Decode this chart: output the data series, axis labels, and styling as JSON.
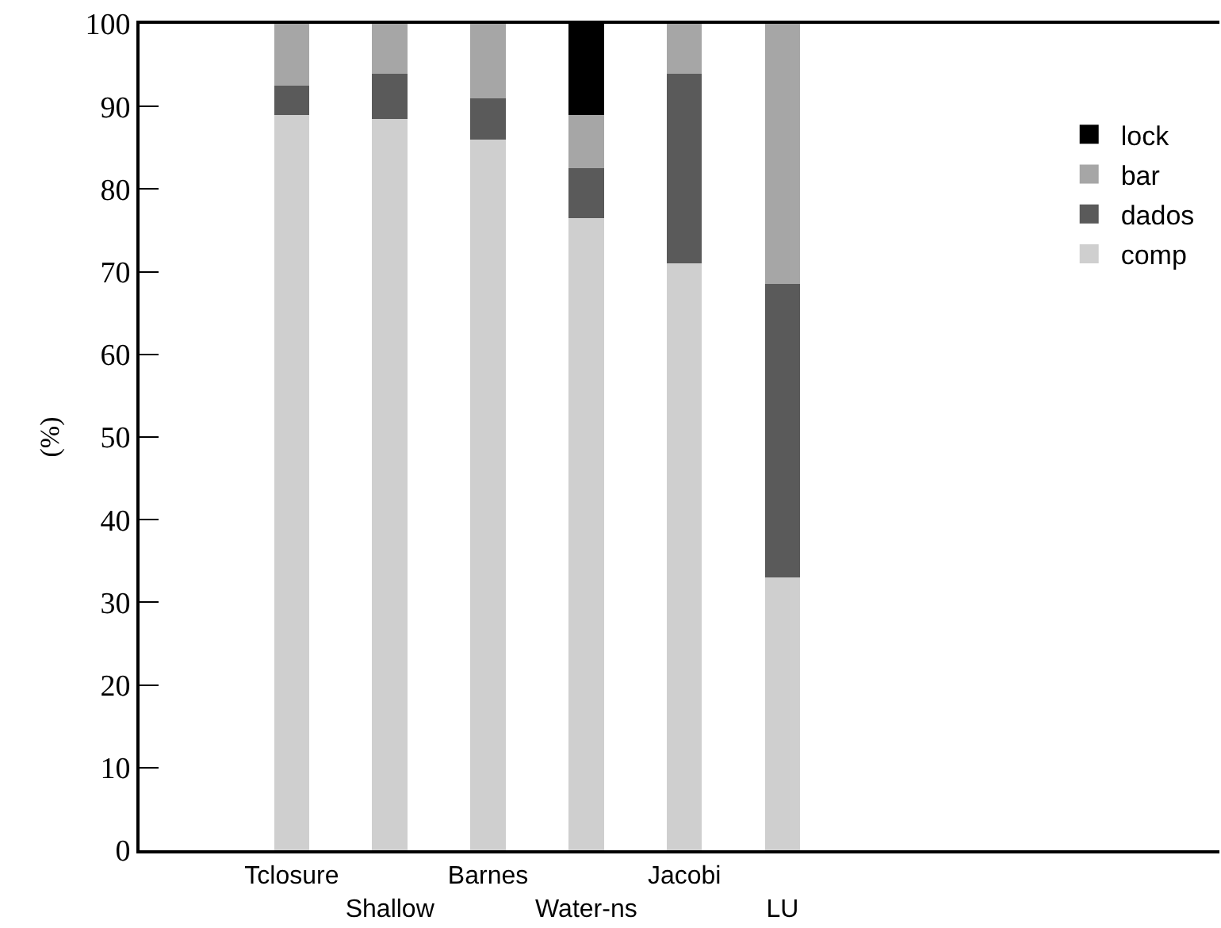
{
  "chart_data": {
    "type": "bar",
    "stacked": true,
    "ylabel": "(%)",
    "categories": [
      "Tclosure",
      "Shallow",
      "Barnes",
      "Water-ns",
      "Jacobi",
      "LU"
    ],
    "series": [
      {
        "name": "comp",
        "color": "#cfcfcf",
        "values": [
          89,
          88.5,
          86,
          76.5,
          71,
          33
        ]
      },
      {
        "name": "dados",
        "color": "#5a5a5a",
        "values": [
          3.5,
          5.5,
          5,
          6,
          23,
          35.5
        ]
      },
      {
        "name": "bar",
        "color": "#a6a6a6",
        "values": [
          7.5,
          6,
          9,
          6.5,
          6,
          31.5
        ]
      },
      {
        "name": "lock",
        "color": "#000000",
        "values": [
          0,
          0,
          0,
          11,
          0,
          0
        ]
      }
    ],
    "ylim": [
      0,
      100
    ],
    "yticks": [
      0,
      10,
      20,
      30,
      40,
      50,
      60,
      70,
      80,
      90,
      100
    ],
    "grid": false,
    "legend": "top right"
  }
}
